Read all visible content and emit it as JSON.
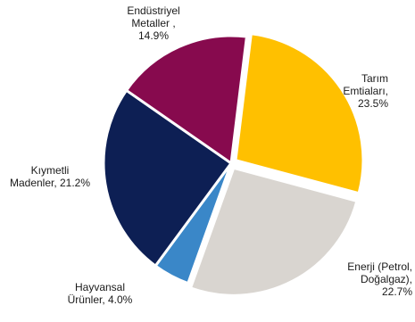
{
  "chart_data": {
    "type": "pie",
    "title": "",
    "start_angle_deg": 7,
    "direction": "clockwise",
    "slices": [
      {
        "label_lines": [
          "Tarım",
          "Emtiaları,",
          "23.5%"
        ],
        "value": 23.5,
        "color": "#FFC000",
        "exploded": true
      },
      {
        "label_lines": [
          "Enerji (Petrol,",
          "Doğalgaz),",
          "22.7%"
        ],
        "value": 22.7,
        "color": "#D9D5D0",
        "exploded": true
      },
      {
        "label_lines": [
          "Hayvansal",
          "Ürünler,  4.0%"
        ],
        "value": 4.0,
        "color": "#3A87C8",
        "exploded": false
      },
      {
        "label_lines": [
          "Kıymetli",
          "Madenler,  21.2%"
        ],
        "value": 21.2,
        "color": "#0D1F54",
        "exploded": false
      },
      {
        "label_lines": [
          "Endüstriyel",
          "Metaller  ,",
          "14.9%"
        ],
        "value": 14.9,
        "color": "#870A4E",
        "exploded": false
      }
    ]
  }
}
